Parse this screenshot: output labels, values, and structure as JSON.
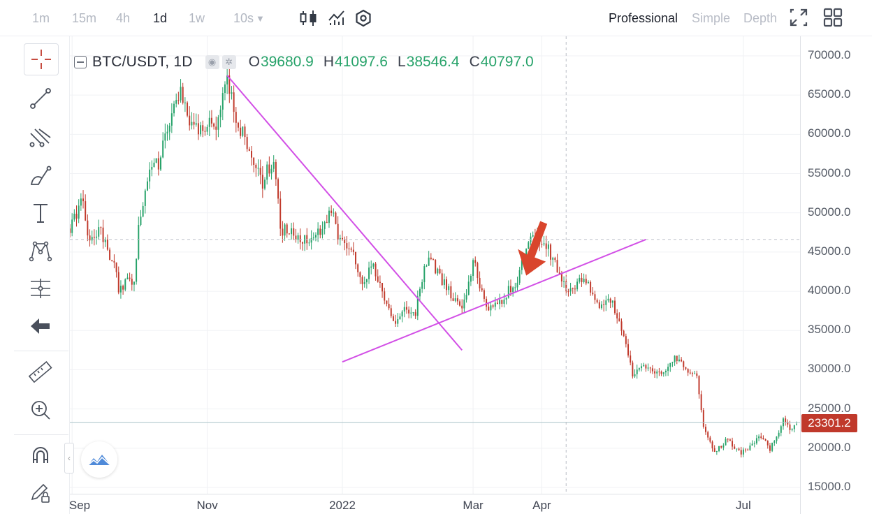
{
  "toolbar": {
    "timeframes": [
      "1m",
      "15m",
      "4h",
      "1d",
      "1w",
      "10s"
    ],
    "active_timeframe": "1d",
    "modes": [
      "Professional",
      "Simple",
      "Depth"
    ],
    "active_mode": "Professional"
  },
  "legend": {
    "symbol": "BTC/USDT, 1D",
    "open_key": "O",
    "open": "39680.9",
    "high_key": "H",
    "high": "41097.6",
    "low_key": "L",
    "low": "38546.4",
    "close_key": "C",
    "close": "40797.0"
  },
  "current_price": "23301.2",
  "colors": {
    "up": "#26a269",
    "down": "#c0392b",
    "trendline": "#d24fe6",
    "arrow": "#d9452c",
    "accent_label": "#c0392b"
  },
  "chart_data": {
    "type": "candlestick",
    "title": "BTC/USDT, 1D",
    "y_ticks": [
      "70000.0",
      "65000.0",
      "60000.0",
      "55000.0",
      "50000.0",
      "45000.0",
      "40000.0",
      "35000.0",
      "30000.0",
      "25000.0",
      "20000.0",
      "15000.0"
    ],
    "ylim": [
      15000,
      70000
    ],
    "x_ticks": [
      "Sep",
      "Nov",
      "2022",
      "Mar",
      "Apr",
      "Jul"
    ],
    "x_range": [
      "2021-08-31",
      "2022-07-25"
    ],
    "anchors": [
      [
        "2021-08-31",
        48000
      ],
      [
        "2021-09-06",
        52000
      ],
      [
        "2021-09-08",
        46500
      ],
      [
        "2021-09-14",
        47800
      ],
      [
        "2021-09-20",
        43000
      ],
      [
        "2021-09-22",
        40500
      ],
      [
        "2021-09-29",
        41500
      ],
      [
        "2021-10-01",
        48000
      ],
      [
        "2021-10-06",
        55000
      ],
      [
        "2021-10-10",
        56500
      ],
      [
        "2021-10-15",
        61500
      ],
      [
        "2021-10-20",
        66000
      ],
      [
        "2021-10-23",
        61500
      ],
      [
        "2021-10-28",
        60500
      ],
      [
        "2021-11-01",
        61500
      ],
      [
        "2021-11-05",
        61000
      ],
      [
        "2021-11-09",
        67500
      ],
      [
        "2021-11-12",
        64500
      ],
      [
        "2021-11-16",
        60500
      ],
      [
        "2021-11-20",
        58500
      ],
      [
        "2021-11-26",
        54000
      ],
      [
        "2021-12-01",
        57000
      ],
      [
        "2021-12-04",
        48000
      ],
      [
        "2021-12-10",
        47500
      ],
      [
        "2021-12-15",
        46500
      ],
      [
        "2021-12-20",
        47000
      ],
      [
        "2021-12-27",
        50500
      ],
      [
        "2021-12-30",
        47000
      ],
      [
        "2022-01-05",
        45500
      ],
      [
        "2022-01-10",
        41500
      ],
      [
        "2022-01-15",
        43000
      ],
      [
        "2022-01-21",
        38500
      ],
      [
        "2022-01-24",
        36000
      ],
      [
        "2022-01-28",
        37500
      ],
      [
        "2022-02-03",
        37500
      ],
      [
        "2022-02-08",
        44000
      ],
      [
        "2022-02-10",
        44000
      ],
      [
        "2022-02-14",
        42000
      ],
      [
        "2022-02-18",
        40000
      ],
      [
        "2022-02-24",
        37500
      ],
      [
        "2022-03-01",
        44000
      ],
      [
        "2022-03-03",
        42000
      ],
      [
        "2022-03-07",
        38000
      ],
      [
        "2022-03-14",
        39000
      ],
      [
        "2022-03-20",
        41000
      ],
      [
        "2022-03-28",
        47000
      ],
      [
        "2022-04-02",
        46500
      ],
      [
        "2022-04-07",
        43500
      ],
      [
        "2022-04-12",
        40000
      ],
      [
        "2022-04-20",
        41500
      ],
      [
        "2022-04-26",
        38500
      ],
      [
        "2022-05-03",
        38500
      ],
      [
        "2022-05-08",
        34500
      ],
      [
        "2022-05-12",
        29500
      ],
      [
        "2022-05-17",
        30500
      ],
      [
        "2022-05-25",
        29500
      ],
      [
        "2022-05-31",
        31500
      ],
      [
        "2022-06-05",
        30000
      ],
      [
        "2022-06-10",
        29000
      ],
      [
        "2022-06-13",
        22500
      ],
      [
        "2022-06-18",
        19500
      ],
      [
        "2022-06-23",
        21000
      ],
      [
        "2022-06-30",
        19500
      ],
      [
        "2022-07-05",
        20500
      ],
      [
        "2022-07-09",
        21500
      ],
      [
        "2022-07-13",
        19800
      ],
      [
        "2022-07-19",
        23500
      ],
      [
        "2022-07-22",
        22500
      ],
      [
        "2022-07-25",
        23300
      ]
    ],
    "annotations": {
      "trendline_down": {
        "from": [
          "2021-11-10",
          67500
        ],
        "to": [
          "2022-02-24",
          32500
        ]
      },
      "trendline_up": {
        "from": [
          "2022-01-01",
          31000
        ],
        "to": [
          "2022-05-18",
          46600
        ]
      },
      "horizontal_level": 46600,
      "current_price_line": 23301.2,
      "crosshair_x": "2022-04-12",
      "arrow_target": [
        "2022-03-25",
        42000
      ]
    }
  }
}
